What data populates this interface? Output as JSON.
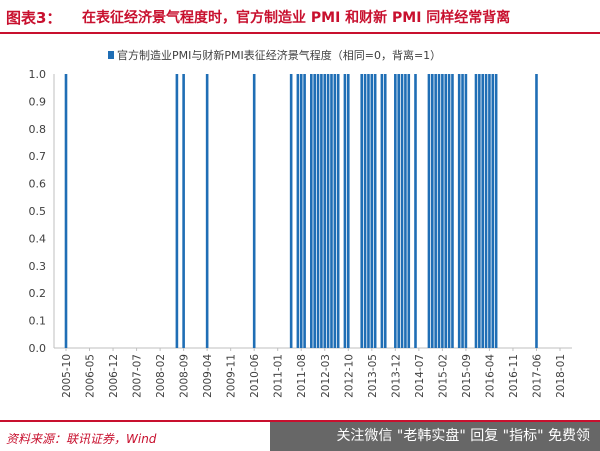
{
  "header": {
    "figure_label": "图表3：",
    "title": "在表征经济景气程度时，官方制造业 PMI 和财新 PMI 同样经常背离"
  },
  "footer": {
    "source": "资料来源：联讯证券，Wind",
    "watermark": "关注微信 \"老韩实盘\" 回复 \"指标\" 免费领"
  },
  "colors": {
    "bar": "#1f6eb5",
    "title": "#c8102e",
    "axis": "#bfbfbf",
    "text": "#404040"
  },
  "chart_data": {
    "type": "bar",
    "title": "",
    "xlabel": "",
    "ylabel": "",
    "ylim": [
      0,
      1.0
    ],
    "yticks": [
      "0.0",
      "0.1",
      "0.2",
      "0.3",
      "0.4",
      "0.5",
      "0.6",
      "0.7",
      "0.8",
      "0.9",
      "1.0"
    ],
    "legend": {
      "position": "top-center",
      "label": "官方制造业PMI与财新PMI表征经济景气程度（相同=0，背离=1）"
    },
    "x_start": "2005-10",
    "x_end": "2018-01",
    "xtick_labels": [
      "2005-10",
      "2006-05",
      "2006-12",
      "2007-07",
      "2008-02",
      "2008-09",
      "2009-04",
      "2009-11",
      "2010-06",
      "2011-01",
      "2011-08",
      "2012-03",
      "2012-10",
      "2013-05",
      "2013-12",
      "2014-07",
      "2015-02",
      "2015-09",
      "2016-04",
      "2016-11",
      "2017-06",
      "2018-01"
    ],
    "series": [
      {
        "name": "官方制造业PMI与财新PMI表征经济景气程度（相同=0，背离=1）",
        "value": 1,
        "x": [
          "2005-10",
          "2008-07",
          "2008-09",
          "2009-04",
          "2010-06",
          "2011-05",
          "2011-07",
          "2011-08",
          "2011-09",
          "2011-11",
          "2011-12",
          "2012-01",
          "2012-02",
          "2012-03",
          "2012-04",
          "2012-05",
          "2012-06",
          "2012-07",
          "2012-09",
          "2012-10",
          "2013-02",
          "2013-03",
          "2013-04",
          "2013-05",
          "2013-06",
          "2013-08",
          "2013-09",
          "2013-12",
          "2014-01",
          "2014-02",
          "2014-03",
          "2014-04",
          "2014-06",
          "2014-10",
          "2014-11",
          "2014-12",
          "2015-01",
          "2015-02",
          "2015-03",
          "2015-04",
          "2015-05",
          "2015-07",
          "2015-08",
          "2015-09",
          "2015-12",
          "2016-01",
          "2016-02",
          "2016-03",
          "2016-04",
          "2016-05",
          "2016-06",
          "2017-06"
        ]
      }
    ]
  }
}
